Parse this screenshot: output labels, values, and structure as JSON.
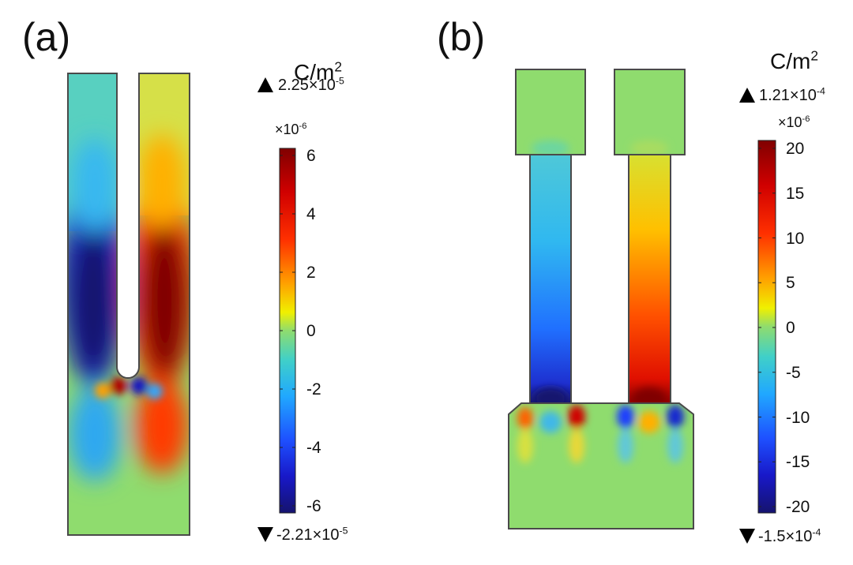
{
  "panels": [
    {
      "label": "(a)",
      "unit": "C/m",
      "unit_sup": "2",
      "max_label": "2.25×10",
      "max_exp": "-5",
      "min_label": "-2.21×10",
      "min_exp": "-5",
      "scale_label": "×10",
      "scale_exp": "-6",
      "ticks": [
        "6",
        "4",
        "2",
        "0",
        "-2",
        "-4",
        "-6"
      ],
      "colorbar_range": [
        -6,
        6
      ]
    },
    {
      "label": "(b)",
      "unit": "C/m",
      "unit_sup": "2",
      "max_label": "1.21×10",
      "max_exp": "-4",
      "min_label": "-1.5×10",
      "min_exp": "-4",
      "scale_label": "×10",
      "scale_exp": "-6",
      "ticks": [
        "20",
        "15",
        "10",
        "5",
        "0",
        "-5",
        "-10",
        "-15",
        "-20"
      ],
      "colorbar_range": [
        -20,
        20
      ]
    }
  ],
  "colors": {
    "background_field": "#8fdc6e",
    "outline": "#4a4a4a",
    "jet_dark_red": "#800000",
    "jet_red": "#ff1a00",
    "jet_yellow": "#ffee00",
    "jet_green": "#8fdc6e",
    "jet_cyan": "#30c8f0",
    "jet_blue": "#1e3cff",
    "jet_dark_blue": "#15136e"
  }
}
